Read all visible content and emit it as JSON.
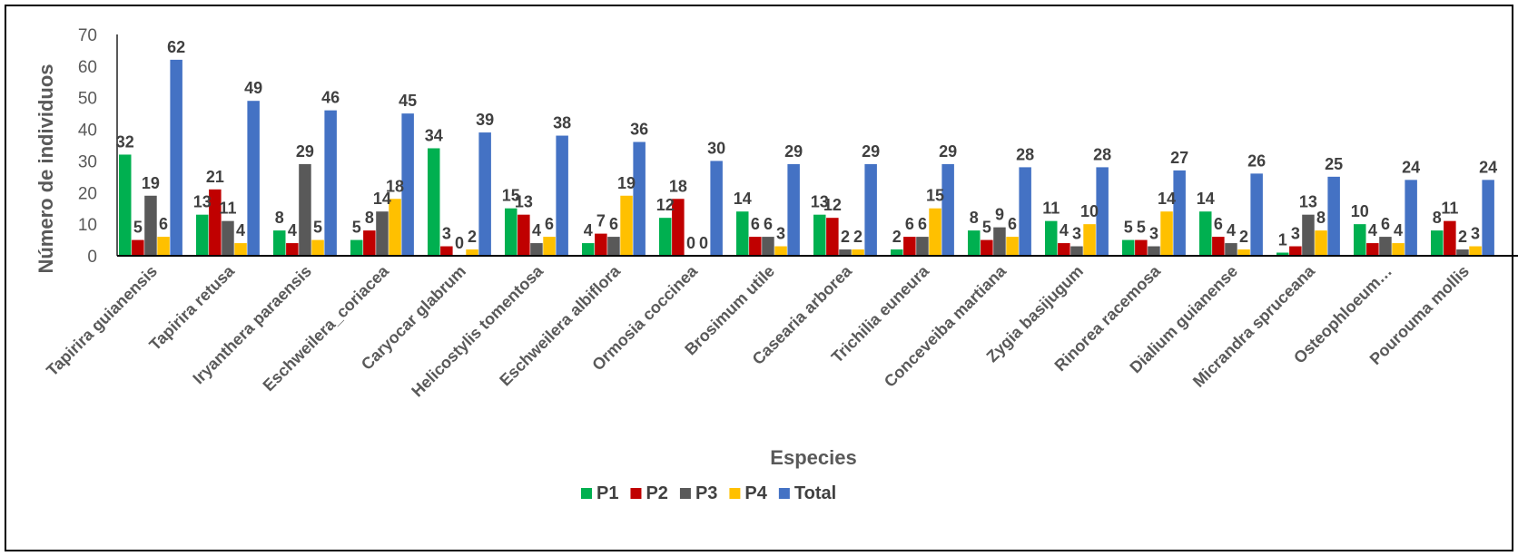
{
  "chart_data": {
    "type": "bar",
    "title": "",
    "xlabel": "Especies",
    "ylabel": "Número de individuos",
    "ylim": [
      0,
      70
    ],
    "yticks": [
      0,
      10,
      20,
      30,
      40,
      50,
      60,
      70
    ],
    "grid": false,
    "legend_position": "bottom",
    "categories": [
      "Tapirira guianensis",
      "Tapirira retusa",
      "Iryanthera paraensis",
      "Eschweilera_coriacea",
      "Caryocar glabrum",
      "Helicostylis tomentosa",
      "Eschweilera albiflora",
      "Ormosia coccinea",
      "Brosimum utile",
      "Casearia arborea",
      "Trichilia euneura",
      "Conceveiba martiana",
      "Zygia basijugum",
      "Rinorea racemosa",
      "Dialium guianense",
      "Micrandra spruceana",
      "Osteophloeum…",
      "Pourouma mollis"
    ],
    "series": [
      {
        "name": "P1",
        "color": "#00B050",
        "values": [
          32,
          13,
          8,
          5,
          34,
          15,
          4,
          12,
          14,
          13,
          2,
          8,
          11,
          5,
          14,
          1,
          10,
          8
        ]
      },
      {
        "name": "P2",
        "color": "#C00000",
        "values": [
          5,
          21,
          4,
          8,
          3,
          13,
          7,
          18,
          6,
          12,
          6,
          5,
          4,
          5,
          6,
          3,
          4,
          11
        ]
      },
      {
        "name": "P3",
        "color": "#595959",
        "values": [
          19,
          11,
          29,
          14,
          0,
          4,
          6,
          0,
          6,
          2,
          6,
          9,
          3,
          3,
          4,
          13,
          6,
          2
        ]
      },
      {
        "name": "P4",
        "color": "#FFC000",
        "values": [
          6,
          4,
          5,
          18,
          2,
          6,
          19,
          0,
          3,
          2,
          15,
          6,
          10,
          14,
          2,
          8,
          4,
          3
        ]
      },
      {
        "name": "Total",
        "color": "#4472C4",
        "values": [
          62,
          49,
          46,
          45,
          39,
          38,
          36,
          30,
          29,
          29,
          29,
          28,
          28,
          27,
          26,
          25,
          24,
          24
        ]
      }
    ]
  }
}
